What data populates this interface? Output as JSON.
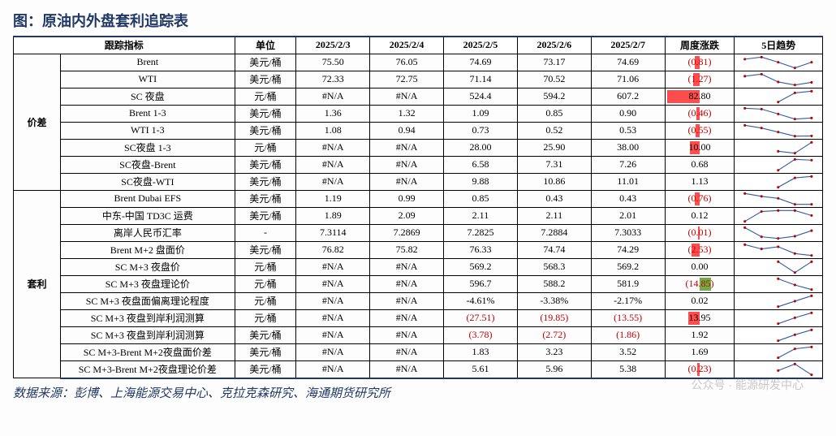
{
  "title": "图：原油内外盘套利追踪表",
  "source": "数据来源：彭博、上海能源交易中心、克拉克森研究、海通期货研究所",
  "watermark": "公众号 · 能源研发中心",
  "columns": {
    "group": "",
    "indicator": "跟踪指标",
    "unit": "单位",
    "d1": "2025/2/3",
    "d2": "2025/2/4",
    "d3": "2025/2/5",
    "d4": "2025/2/6",
    "d5": "2025/2/7",
    "chg": "周度涨跌",
    "spark": "5日趋势"
  },
  "palette": {
    "line": "#2e5ca5",
    "marker": "#c00000",
    "barUp": "#ff4d4d",
    "barDn": "#70ad47",
    "neg": "#c00000",
    "pos": "#000000",
    "border": "#000000",
    "accent": "#1f3864"
  },
  "groups": [
    {
      "name": "价差",
      "rows": [
        {
          "ind": "Brent",
          "unit": "美元/桶",
          "d": [
            "75.50",
            "76.05",
            "74.69",
            "73.17",
            "74.69"
          ],
          "chg": "(0.81)",
          "chgNeg": true,
          "bar": {
            "dir": "red",
            "w": 6
          },
          "spark": [
            75.5,
            76.05,
            74.69,
            73.17,
            74.69
          ]
        },
        {
          "ind": "WTI",
          "unit": "美元/桶",
          "d": [
            "72.33",
            "72.75",
            "71.14",
            "70.52",
            "71.06"
          ],
          "chg": "(1.27)",
          "chgNeg": true,
          "bar": {
            "dir": "red",
            "w": 8
          },
          "spark": [
            72.33,
            72.75,
            71.14,
            70.52,
            71.06
          ]
        },
        {
          "ind": "SC 夜盘",
          "unit": "元/桶",
          "d": [
            "#N/A",
            "#N/A",
            "524.4",
            "594.2",
            "607.2"
          ],
          "chg": "82.80",
          "chgNeg": false,
          "bar": {
            "dir": "red",
            "w": 40,
            "solid": true
          },
          "spark": [
            null,
            null,
            524.4,
            594.2,
            607.2
          ]
        },
        {
          "ind": "Brent 1-3",
          "unit": "美元/桶",
          "d": [
            "1.36",
            "1.32",
            "1.09",
            "0.85",
            "0.90"
          ],
          "chg": "(0.46)",
          "chgNeg": true,
          "bar": {
            "dir": "red",
            "w": 4
          },
          "spark": [
            1.36,
            1.32,
            1.09,
            0.85,
            0.9
          ]
        },
        {
          "ind": "WTI 1-3",
          "unit": "美元/桶",
          "d": [
            "1.08",
            "0.94",
            "0.73",
            "0.52",
            "0.53"
          ],
          "chg": "(0.55)",
          "chgNeg": true,
          "bar": {
            "dir": "red",
            "w": 5
          },
          "spark": [
            1.08,
            0.94,
            0.73,
            0.52,
            0.53
          ]
        },
        {
          "ind": "SC夜盘 1-3",
          "unit": "元/桶",
          "d": [
            "#N/A",
            "#N/A",
            "28.00",
            "25.90",
            "38.00"
          ],
          "chg": "10.00",
          "chgNeg": false,
          "bar": {
            "dir": "red",
            "w": 12,
            "solid": true
          },
          "spark": [
            null,
            null,
            28.0,
            25.9,
            38.0
          ]
        },
        {
          "ind": "SC夜盘-Brent",
          "unit": "美元/桶",
          "d": [
            "#N/A",
            "#N/A",
            "6.58",
            "7.31",
            "7.26"
          ],
          "chg": "0.68",
          "chgNeg": false,
          "bar": {
            "dir": "none",
            "w": 0
          },
          "spark": [
            null,
            null,
            6.58,
            7.31,
            7.26
          ]
        },
        {
          "ind": "SC夜盘-WTI",
          "unit": "美元/桶",
          "d": [
            "#N/A",
            "#N/A",
            "9.88",
            "10.86",
            "11.01"
          ],
          "chg": "1.13",
          "chgNeg": false,
          "bar": {
            "dir": "none",
            "w": 0
          },
          "spark": [
            null,
            null,
            9.88,
            10.86,
            11.01
          ]
        }
      ]
    },
    {
      "name": "套利",
      "rows": [
        {
          "ind": "Brent Dubai EFS",
          "unit": "美元/桶",
          "d": [
            "1.19",
            "0.99",
            "0.85",
            "0.43",
            "0.43"
          ],
          "chg": "(0.76)",
          "chgNeg": true,
          "bar": {
            "dir": "red",
            "w": 6
          },
          "spark": [
            1.19,
            0.99,
            0.85,
            0.43,
            0.43
          ]
        },
        {
          "ind": "中东-中国 TD3C 运费",
          "unit": "美元/桶",
          "d": [
            "1.89",
            "2.09",
            "2.11",
            "2.11",
            "2.01"
          ],
          "chg": "0.12",
          "chgNeg": false,
          "bar": {
            "dir": "none",
            "w": 0
          },
          "spark": [
            1.89,
            2.09,
            2.11,
            2.11,
            2.01
          ]
        },
        {
          "ind": "离岸人民币汇率",
          "unit": "-",
          "d": [
            "7.3114",
            "7.2869",
            "7.2825",
            "7.2884",
            "7.3033"
          ],
          "chg": "(0.01)",
          "chgNeg": true,
          "bar": {
            "dir": "red",
            "w": 2
          },
          "spark": [
            7.3114,
            7.2869,
            7.2825,
            7.2884,
            7.3033
          ]
        },
        {
          "ind": "Brent M+2 盘面价",
          "unit": "美元/桶",
          "d": [
            "76.82",
            "75.82",
            "76.33",
            "74.74",
            "74.29"
          ],
          "chg": "(2.53)",
          "chgNeg": true,
          "bar": {
            "dir": "red",
            "w": 10
          },
          "spark": [
            76.82,
            75.82,
            76.33,
            74.74,
            74.29
          ]
        },
        {
          "ind": "SC M+3 夜盘价",
          "unit": "元/桶",
          "d": [
            "#N/A",
            "#N/A",
            "569.2",
            "568.3",
            "569.2"
          ],
          "chg": "0.00",
          "chgNeg": false,
          "bar": {
            "dir": "none",
            "w": 0
          },
          "spark": [
            null,
            null,
            569.2,
            568.3,
            569.2
          ]
        },
        {
          "ind": "SC M+3 夜盘理论价",
          "unit": "元/桶",
          "d": [
            "#N/A",
            "#N/A",
            "596.7",
            "588.2",
            "581.9"
          ],
          "chg": "(14.85)",
          "chgNeg": true,
          "bar": {
            "dir": "green",
            "w": 14
          },
          "spark": [
            null,
            null,
            596.7,
            588.2,
            581.9
          ]
        },
        {
          "ind": "SC M+3 夜盘面偏离理论程度",
          "unit": "元/桶",
          "d": [
            "#N/A",
            "#N/A",
            "-4.61%",
            "-3.38%",
            "-2.17%"
          ],
          "chg": "0.02",
          "chgNeg": false,
          "bar": {
            "dir": "none",
            "w": 0
          },
          "spark": [
            null,
            null,
            -4.61,
            -3.38,
            -2.17
          ]
        },
        {
          "ind": "SC M+3 夜盘到岸利润测算",
          "unit": "元/桶",
          "d": [
            "#N/A",
            "#N/A",
            "(27.51)",
            "(19.85)",
            "(13.55)"
          ],
          "dNeg": [
            false,
            false,
            true,
            true,
            true
          ],
          "chg": "13.95",
          "chgNeg": false,
          "bar": {
            "dir": "red",
            "w": 14,
            "solid": true
          },
          "spark": [
            null,
            null,
            -27.51,
            -19.85,
            -13.55
          ]
        },
        {
          "ind": "SC M+3 夜盘到岸利润测算",
          "unit": "美元/桶",
          "d": [
            "#N/A",
            "#N/A",
            "(3.78)",
            "(2.72)",
            "(1.86)"
          ],
          "dNeg": [
            false,
            false,
            true,
            true,
            true
          ],
          "chg": "1.92",
          "chgNeg": false,
          "bar": {
            "dir": "none",
            "w": 0
          },
          "spark": [
            null,
            null,
            -3.78,
            -2.72,
            -1.86
          ]
        },
        {
          "ind": "SC M+3-Brent M+2夜盘面价差",
          "unit": "美元/桶",
          "d": [
            "#N/A",
            "#N/A",
            "1.83",
            "3.23",
            "3.52"
          ],
          "chg": "1.69",
          "chgNeg": false,
          "bar": {
            "dir": "none",
            "w": 0
          },
          "spark": [
            null,
            null,
            1.83,
            3.23,
            3.52
          ]
        },
        {
          "ind": "SC M+3-Brent M+2夜盘理论价差",
          "unit": "美元/桶",
          "d": [
            "#N/A",
            "#N/A",
            "5.61",
            "5.96",
            "5.38"
          ],
          "chg": "(0.23)",
          "chgNeg": true,
          "bar": {
            "dir": "red",
            "w": 3
          },
          "spark": [
            null,
            null,
            5.61,
            5.96,
            5.38
          ]
        }
      ]
    }
  ]
}
